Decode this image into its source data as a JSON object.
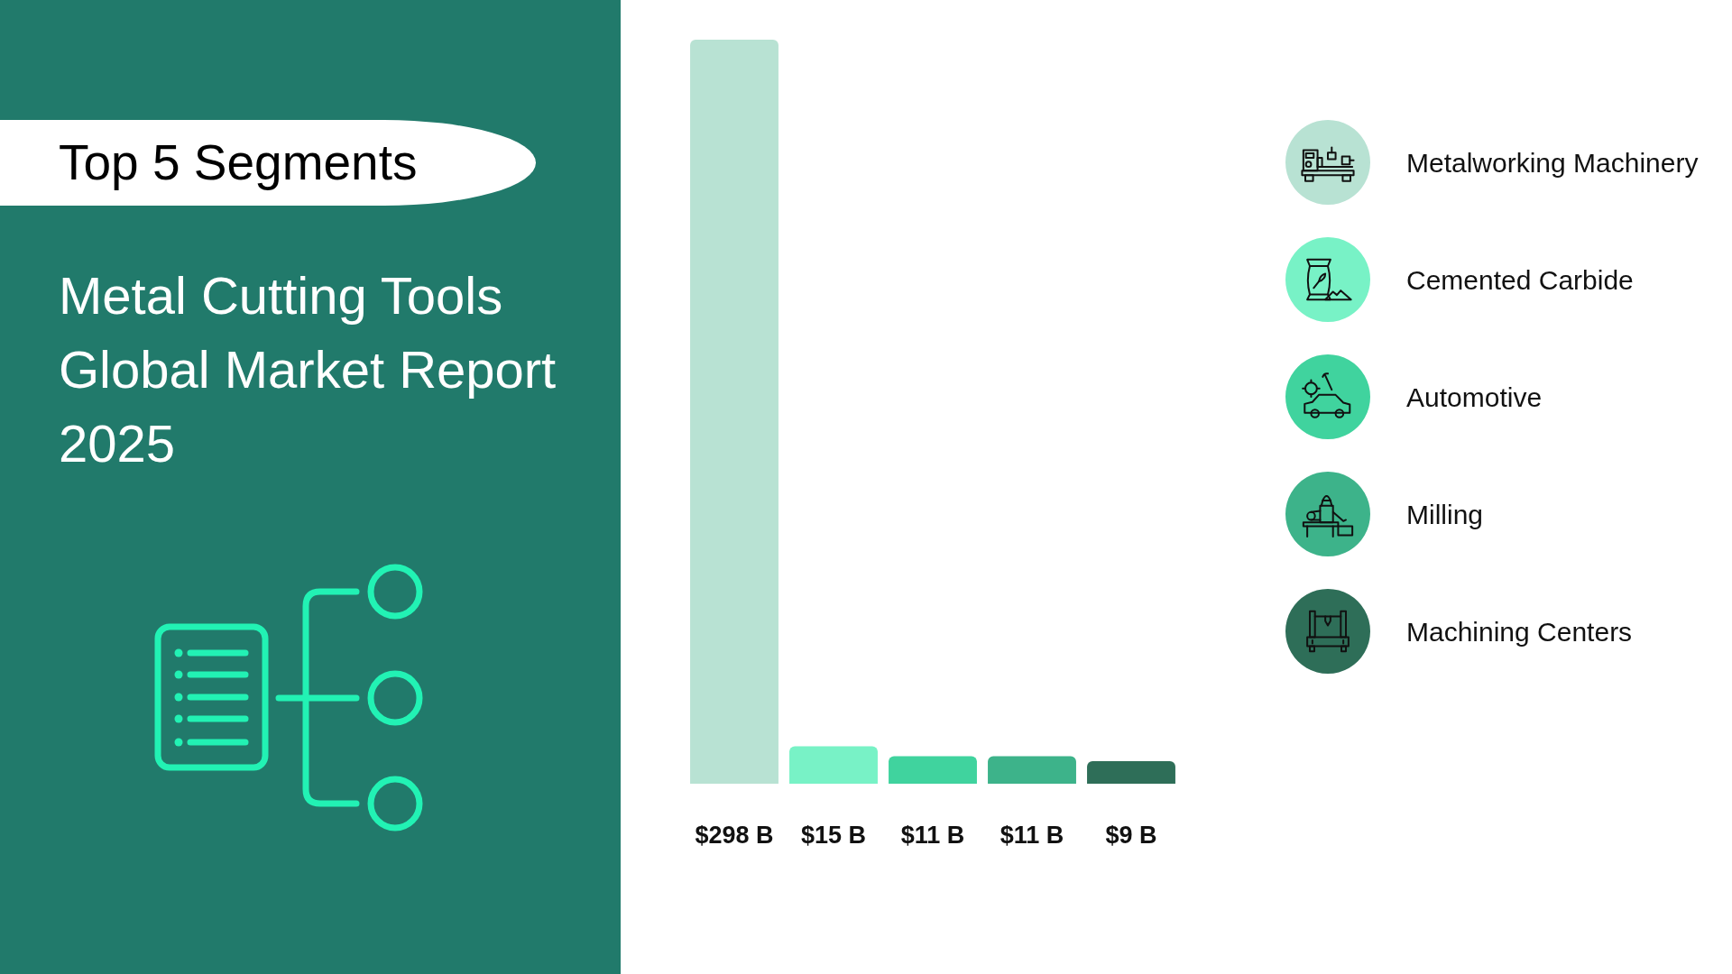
{
  "chart_data": {
    "type": "bar",
    "title": "Top 5 Segments",
    "subtitle": "Metal Cutting Tools Global Market Report 2025",
    "categories": [
      null,
      null,
      null,
      null,
      null
    ],
    "series": [
      {
        "name": "Metalworking Machinery",
        "color": "#b8e2d3",
        "values": [
          298,
          null,
          null,
          null,
          null
        ],
        "value_labels": [
          "$298 B",
          null,
          null,
          null,
          null
        ]
      },
      {
        "name": "Cemented Carbide",
        "color": "#78f2c6",
        "values": [
          null,
          15,
          null,
          null,
          null
        ],
        "value_labels": [
          null,
          "$15 B",
          null,
          null,
          null
        ]
      },
      {
        "name": "Automotive",
        "color": "#40d39e",
        "values": [
          null,
          null,
          11,
          null,
          null
        ],
        "value_labels": [
          null,
          null,
          "$11 B",
          null,
          null
        ]
      },
      {
        "name": "Milling",
        "color": "#3db38a",
        "values": [
          null,
          null,
          null,
          11,
          null
        ],
        "value_labels": [
          null,
          null,
          null,
          "$11 B",
          null
        ]
      },
      {
        "name": "Machining Centers",
        "color": "#2e6e58",
        "values": [
          null,
          null,
          null,
          null,
          9
        ],
        "value_labels": [
          null,
          null,
          null,
          null,
          "$9 B"
        ]
      }
    ],
    "stacked": true,
    "legend": "right",
    "tick_labels": false
  }
}
